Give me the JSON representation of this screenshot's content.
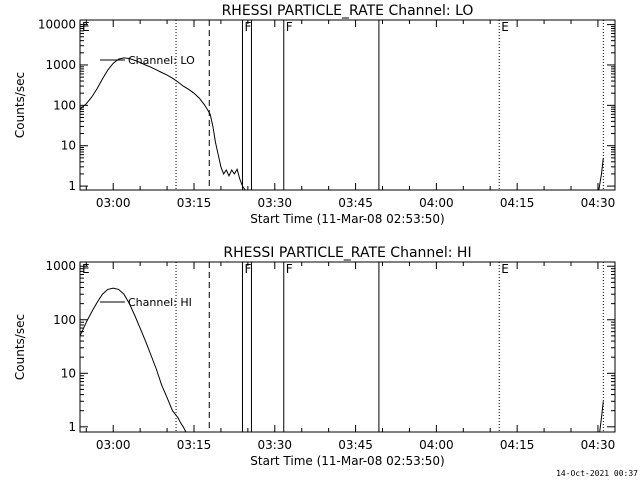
{
  "footer_timestamp": "14-Oct-2021 00:37",
  "chart_data": [
    {
      "type": "line",
      "title": "RHESSI PARTICLE_RATE Channel: LO",
      "xlabel": "Start Time (11-Mar-08 02:53:50)",
      "ylabel": "Counts/sec",
      "yscale": "log",
      "xlim": [
        "02:53:50",
        "04:33:10"
      ],
      "ylim": [
        0.8,
        13000
      ],
      "x_ticks": [
        "03:00",
        "03:15",
        "03:30",
        "03:45",
        "04:00",
        "04:15",
        "04:30"
      ],
      "y_ticks": [
        "1",
        "10",
        "100",
        "1000",
        "10000"
      ],
      "legend": "Channel: LO",
      "legend_position": "top-left",
      "series": [
        {
          "name": "Channel: LO",
          "x": [
            "02:53:50",
            "02:55:00",
            "02:56:00",
            "02:57:00",
            "02:58:00",
            "02:59:00",
            "03:00:00",
            "03:01:00",
            "03:02:00",
            "03:03:00",
            "03:04:00",
            "03:05:00",
            "03:06:00",
            "03:07:00",
            "03:08:00",
            "03:09:00",
            "03:10:00",
            "03:11:00",
            "03:12:00",
            "03:13:00",
            "03:14:00",
            "03:15:00",
            "03:16:00",
            "03:17:00",
            "03:18:00",
            "03:18:30",
            "03:19:00",
            "03:19:30",
            "03:20:00",
            "03:20:30",
            "03:21:00",
            "03:21:30",
            "03:22:00",
            "03:22:30",
            "03:23:00",
            "03:23:30",
            "03:24:00",
            "03:24:30"
          ],
          "y": [
            80,
            110,
            160,
            260,
            450,
            750,
            1100,
            1400,
            1500,
            1450,
            1300,
            1150,
            1000,
            880,
            760,
            650,
            560,
            470,
            380,
            300,
            250,
            200,
            150,
            100,
            60,
            30,
            12,
            6,
            3,
            2,
            2.5,
            1.8,
            2.5,
            2,
            2.6,
            1.5,
            1,
            0.8
          ]
        },
        {
          "name": "tail",
          "x": [
            "04:30:10",
            "04:30:40",
            "04:31:00"
          ],
          "y": [
            0.8,
            2,
            5
          ]
        }
      ],
      "vlines": [
        {
          "x": "03:11:40",
          "style": "dotted",
          "label": ""
        },
        {
          "x": "03:17:50",
          "style": "dashed",
          "label": ""
        },
        {
          "x": "03:24:00",
          "style": "solid",
          "label": "F"
        },
        {
          "x": "03:25:40",
          "style": "solid",
          "label": ""
        },
        {
          "x": "03:31:40",
          "style": "solid",
          "label": "F"
        },
        {
          "x": "03:49:20",
          "style": "solid",
          "label": ""
        },
        {
          "x": "04:11:40",
          "style": "dotted",
          "label": "E"
        },
        {
          "x": "04:31:00",
          "style": "dotted",
          "label": ""
        }
      ],
      "corner_label": "E"
    },
    {
      "type": "line",
      "title": "RHESSI PARTICLE_RATE Channel: HI",
      "xlabel": "Start Time (11-Mar-08 02:53:50)",
      "ylabel": "Counts/sec",
      "yscale": "log",
      "xlim": [
        "02:53:50",
        "04:33:10"
      ],
      "ylim": [
        0.8,
        1200
      ],
      "x_ticks": [
        "03:00",
        "03:15",
        "03:30",
        "03:45",
        "04:00",
        "04:15",
        "04:30"
      ],
      "y_ticks": [
        "1",
        "10",
        "100",
        "1000"
      ],
      "legend": "Channel: HI",
      "legend_position": "top-left",
      "series": [
        {
          "name": "Channel: HI",
          "x": [
            "02:53:50",
            "02:55:00",
            "02:56:00",
            "02:57:00",
            "02:58:00",
            "02:59:00",
            "03:00:00",
            "03:01:00",
            "03:02:00",
            "03:03:00",
            "03:04:00",
            "03:05:00",
            "03:06:00",
            "03:07:00",
            "03:08:00",
            "03:09:00",
            "03:10:00",
            "03:11:00",
            "03:12:00",
            "03:12:30",
            "03:13:00",
            "03:13:30"
          ],
          "y": [
            50,
            90,
            140,
            210,
            300,
            370,
            390,
            370,
            300,
            200,
            120,
            70,
            40,
            22,
            12,
            6,
            3.5,
            2,
            1.5,
            1.2,
            1,
            0.8
          ]
        },
        {
          "name": "tail",
          "x": [
            "04:30:20",
            "04:30:40",
            "04:31:00"
          ],
          "y": [
            0.8,
            1.5,
            3
          ]
        }
      ],
      "vlines": [
        {
          "x": "03:11:40",
          "style": "dotted",
          "label": ""
        },
        {
          "x": "03:17:50",
          "style": "dashed",
          "label": ""
        },
        {
          "x": "03:24:00",
          "style": "solid",
          "label": "F"
        },
        {
          "x": "03:25:40",
          "style": "solid",
          "label": ""
        },
        {
          "x": "03:31:40",
          "style": "solid",
          "label": "F"
        },
        {
          "x": "03:49:20",
          "style": "solid",
          "label": ""
        },
        {
          "x": "04:11:40",
          "style": "dotted",
          "label": "E"
        },
        {
          "x": "04:31:00",
          "style": "dotted",
          "label": ""
        }
      ],
      "corner_label": "E"
    }
  ]
}
